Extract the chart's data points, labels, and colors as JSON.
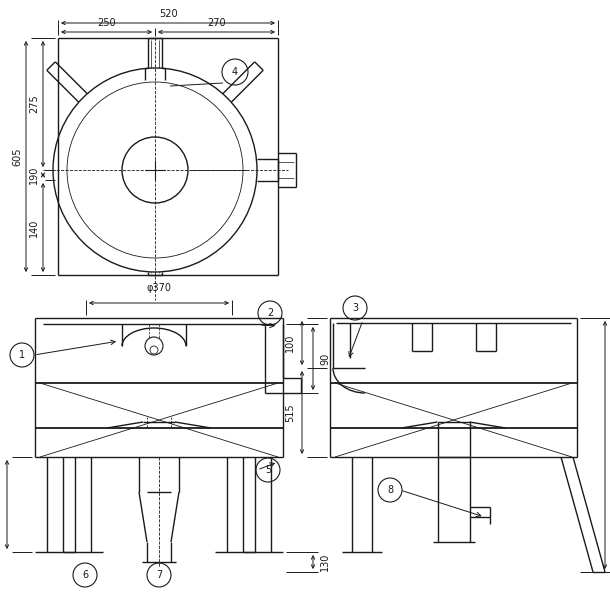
{
  "bg_color": "#ffffff",
  "line_color": "#1a1a1a",
  "dim_color": "#1a1a1a",
  "figsize": [
    6.1,
    6.1
  ],
  "dpi": 100
}
